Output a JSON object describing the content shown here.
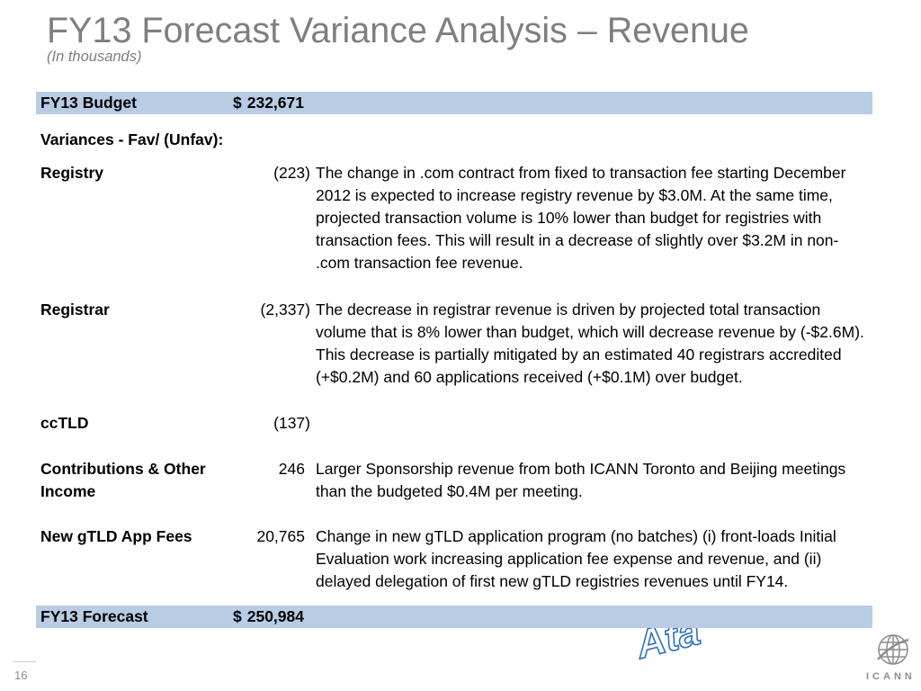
{
  "slide": {
    "title": "FY13 Forecast Variance Analysis – Revenue",
    "subtitle": "(In thousands)",
    "page_number": "16"
  },
  "budget": {
    "label": "FY13 Budget",
    "currency": "$",
    "amount": "232,671"
  },
  "variances": {
    "heading": "Variances - Fav/ (Unfav):",
    "rows": [
      {
        "label": "Registry",
        "amount": "(223)",
        "lines": [
          "The change in .com contract from fixed to transaction fee starting December",
          "2012 is expected to increase registry revenue by $3.0M. At the same time,",
          "projected transaction volume is 10% lower than budget for registries with",
          "transaction fees. This will result in a decrease of slightly over $3.2M in non-",
          ".com transaction fee revenue."
        ]
      },
      {
        "label": "Registrar",
        "amount": "(2,337)",
        "lines": [
          "The decrease in registrar revenue is driven by projected total transaction",
          "volume that is 8% lower than budget, which will decrease revenue by (-$2.6M).",
          "This decrease is partially mitigated by an estimated 40 registrars accredited",
          "(+$0.2M) and 60 applications received (+$0.1M) over budget."
        ]
      },
      {
        "label": "ccTLD",
        "amount": "(137)",
        "lines": []
      },
      {
        "label": "Contributions & Other Income",
        "amount": "246",
        "lines": [
          "Larger Sponsorship revenue from both ICANN Toronto and Beijing meetings",
          "than the budgeted $0.4M per meeting."
        ]
      },
      {
        "label": "New gTLD App Fees",
        "amount": "20,765",
        "lines": [
          "Change in new gTLD application program (no batches) (i) front-loads Initial",
          "Evaluation work increasing application fee expense and revenue, and (ii)",
          "delayed delegation of first new gTLD registries revenues until FY14."
        ]
      }
    ]
  },
  "forecast": {
    "label": "FY13 Forecast",
    "currency": "$",
    "amount": "250,984"
  },
  "watermark": {
    "text": "Ata"
  },
  "logo": {
    "icon": "globe-icon",
    "text": "ICANN"
  },
  "colors": {
    "title_gray": "#7f7f7f",
    "row_highlight": "#b8cce4",
    "watermark_blue": "#2f6fbf",
    "logo_gray": "#8c8c8c"
  }
}
